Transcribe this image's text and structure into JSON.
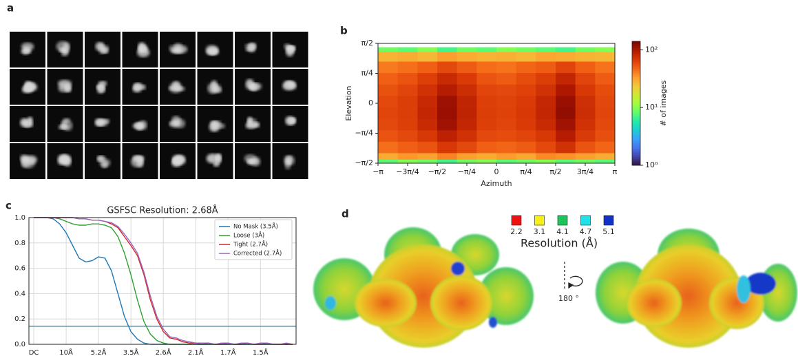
{
  "panels": [
    "a",
    "b",
    "c",
    "d"
  ],
  "chart_data": [
    {
      "type": "heatmap",
      "xlabel": "Azimuth",
      "ylabel": "Elevation",
      "colorbar_label": "# of images",
      "xbins": [
        -3.1416,
        -2.618,
        -2.0944,
        -1.5708,
        -1.0472,
        -0.5236,
        0,
        0.5236,
        1.0472,
        1.5708,
        2.0944,
        2.618,
        3.1416
      ],
      "ybins": [
        -1.5708,
        -1.47,
        -1.3,
        -1.0,
        -0.7,
        -0.4,
        -0.1,
        0.2,
        0.5,
        0.8,
        1.1,
        1.35,
        1.47,
        1.5708
      ],
      "z": [
        [
          8,
          10,
          9,
          7,
          9,
          10,
          8,
          9,
          10,
          8,
          9,
          8
        ],
        [
          30,
          35,
          32,
          40,
          33,
          30,
          34,
          31,
          38,
          36,
          33,
          30
        ],
        [
          45,
          50,
          55,
          70,
          60,
          50,
          48,
          52,
          60,
          75,
          55,
          48
        ],
        [
          55,
          60,
          70,
          90,
          75,
          60,
          58,
          62,
          70,
          95,
          68,
          57
        ],
        [
          60,
          65,
          80,
          110,
          85,
          65,
          62,
          68,
          80,
          110,
          75,
          60
        ],
        [
          62,
          66,
          85,
          115,
          88,
          66,
          64,
          70,
          85,
          120,
          78,
          62
        ],
        [
          60,
          66,
          82,
          112,
          86,
          65,
          63,
          68,
          84,
          115,
          76,
          61
        ],
        [
          56,
          62,
          75,
          95,
          78,
          62,
          60,
          64,
          75,
          100,
          70,
          58
        ],
        [
          50,
          55,
          65,
          80,
          68,
          55,
          52,
          58,
          66,
          85,
          62,
          52
        ],
        [
          42,
          45,
          50,
          60,
          52,
          46,
          44,
          48,
          52,
          62,
          50,
          44
        ],
        [
          28,
          30,
          27,
          33,
          30,
          28,
          29,
          27,
          31,
          30,
          28,
          27
        ],
        [
          9,
          8,
          10,
          7,
          9,
          8,
          10,
          9,
          8,
          7,
          9,
          10
        ]
      ],
      "xlim": [
        -3.1416,
        3.1416
      ],
      "ylim": [
        -1.5708,
        1.5708
      ],
      "xticks": [
        {
          "value": -3.1416,
          "label": "−π"
        },
        {
          "value": -2.3562,
          "label": "−3π/4"
        },
        {
          "value": -1.5708,
          "label": "−π/2"
        },
        {
          "value": -0.7854,
          "label": "−π/4"
        },
        0,
        {
          "value": 0.7854,
          "label": "π/4"
        },
        {
          "value": 1.5708,
          "label": "π/2"
        },
        {
          "value": 2.3562,
          "label": "3π/4"
        },
        {
          "value": 3.1416,
          "label": "π"
        }
      ],
      "yticks": [
        {
          "value": -1.5708,
          "label": "−π/2"
        },
        {
          "value": -0.7854,
          "label": "−π/4"
        },
        0,
        {
          "value": 0.7854,
          "label": "π/4"
        },
        {
          "value": 1.5708,
          "label": "π/2"
        }
      ],
      "clim": [
        1,
        140
      ],
      "log_color": true,
      "cticks": [
        {
          "value": 1,
          "label": "10⁰"
        },
        {
          "value": 10,
          "label": "10¹"
        },
        {
          "value": 100,
          "label": "10²"
        }
      ],
      "colormap": [
        "#30123b",
        "#4145ab",
        "#4675ed",
        "#39a2fc",
        "#1bcfd4",
        "#24eca6",
        "#61fc6c",
        "#a4fc3b",
        "#d1e834",
        "#f3c63a",
        "#fe9b2d",
        "#f36315",
        "#d93806",
        "#b11901",
        "#7a0403"
      ]
    },
    {
      "type": "line",
      "title": "GSFSC Resolution: 2.68Å",
      "x": [
        0,
        2,
        4,
        6,
        8,
        10,
        12,
        14,
        16,
        18,
        20,
        22,
        24,
        26,
        28,
        30,
        32,
        34,
        36,
        38,
        40,
        42,
        44,
        46,
        48,
        50,
        52,
        54,
        56,
        58,
        60,
        62,
        64,
        66,
        68,
        70,
        72,
        74,
        76,
        78,
        80
      ],
      "series": [
        {
          "name": "No Mask (3.5Å)",
          "color": "#1f77b4",
          "values": [
            1.0,
            1.0,
            1.0,
            0.99,
            0.95,
            0.88,
            0.78,
            0.68,
            0.65,
            0.66,
            0.69,
            0.68,
            0.58,
            0.4,
            0.22,
            0.1,
            0.04,
            0.01,
            0.0,
            0.0,
            0.0,
            0.0,
            0.0,
            0.0,
            0.0,
            0.0,
            0.0,
            0.0,
            0.0,
            0.0,
            0.0,
            0.0,
            0.0,
            0.0,
            0.0,
            0.0,
            0.0,
            0.0,
            0.0,
            0.0,
            0.0
          ]
        },
        {
          "name": "Loose (3Å)",
          "color": "#2ca02c",
          "values": [
            1.0,
            1.0,
            1.0,
            1.0,
            0.99,
            0.97,
            0.95,
            0.94,
            0.94,
            0.95,
            0.95,
            0.94,
            0.92,
            0.85,
            0.72,
            0.55,
            0.35,
            0.18,
            0.08,
            0.03,
            0.01,
            0.0,
            0.0,
            0.0,
            0.0,
            0.0,
            0.0,
            0.0,
            0.0,
            0.0,
            0.0,
            0.0,
            0.0,
            0.0,
            0.0,
            0.0,
            0.0,
            0.0,
            0.0,
            0.0,
            0.0
          ]
        },
        {
          "name": "Tight (2.7Å)",
          "color": "#d62728",
          "values": [
            1.0,
            1.0,
            1.0,
            1.0,
            1.0,
            1.0,
            1.0,
            0.99,
            0.99,
            0.98,
            0.98,
            0.97,
            0.95,
            0.92,
            0.85,
            0.78,
            0.7,
            0.55,
            0.35,
            0.2,
            0.1,
            0.05,
            0.04,
            0.02,
            0.01,
            0.01,
            0.0,
            0.01,
            0.0,
            0.0,
            0.01,
            0.0,
            0.0,
            0.01,
            0.0,
            0.0,
            0.01,
            0.0,
            0.0,
            0.0,
            0.0
          ]
        },
        {
          "name": "Corrected (2.7Å)",
          "color": "#9467bd",
          "values": [
            1.0,
            1.0,
            1.0,
            1.0,
            1.0,
            1.0,
            1.0,
            0.99,
            0.99,
            0.98,
            0.98,
            0.97,
            0.96,
            0.93,
            0.87,
            0.8,
            0.72,
            0.57,
            0.38,
            0.22,
            0.12,
            0.06,
            0.05,
            0.03,
            0.02,
            0.01,
            0.01,
            0.01,
            0.0,
            0.01,
            0.01,
            0.0,
            0.01,
            0.01,
            0.0,
            0.01,
            0.01,
            0.0,
            0.0,
            0.01,
            0.0
          ]
        }
      ],
      "threshold": 0.143,
      "threshold_color": "#1f8ca8",
      "xlim": [
        -1.5,
        81
      ],
      "ylim": [
        0,
        1
      ],
      "xticks": [
        {
          "value": 0,
          "label": "DC"
        },
        {
          "value": 10,
          "label": "10Å"
        },
        {
          "value": 20,
          "label": "5.2Å"
        },
        {
          "value": 30,
          "label": "3.5Å"
        },
        {
          "value": 40,
          "label": "2.6Å"
        },
        {
          "value": 50,
          "label": "2.1Å"
        },
        {
          "value": 60,
          "label": "1.7Å"
        },
        {
          "value": 70,
          "label": "1.5Å"
        }
      ],
      "yticks": [
        {
          "value": 0,
          "label": "0.0"
        },
        {
          "value": 0.2,
          "label": "0.2"
        },
        {
          "value": 0.4,
          "label": "0.4"
        },
        {
          "value": 0.6,
          "label": "0.6"
        },
        {
          "value": 0.8,
          "label": "0.8"
        },
        {
          "value": 1,
          "label": "1.0"
        }
      ],
      "grid": true,
      "legend": "upper right"
    }
  ],
  "resolution_legend": {
    "title": "Resolution (Å)",
    "rotation": "180 °",
    "items": [
      {
        "label": "2.2",
        "color": "#ee1111"
      },
      {
        "label": "3.1",
        "color": "#f5f01a"
      },
      {
        "label": "4.1",
        "color": "#1cc45a"
      },
      {
        "label": "4.7",
        "color": "#22e0e8"
      },
      {
        "label": "5.1",
        "color": "#1030c8"
      }
    ]
  }
}
